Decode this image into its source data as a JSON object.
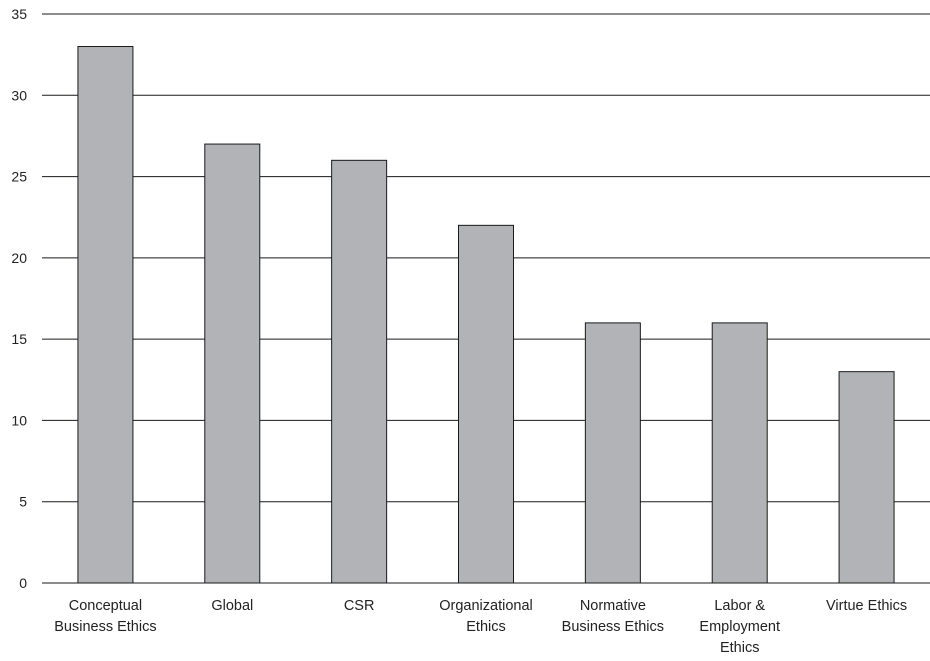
{
  "chart_data": {
    "type": "bar",
    "title": "",
    "xlabel": "",
    "ylabel": "",
    "categories": [
      "Conceptual Business Ethics",
      "Global",
      "CSR",
      "Organizational Ethics",
      "Normative Business Ethics",
      "Labor & Employment Ethics",
      "Virtue Ethics"
    ],
    "category_label_lines": [
      [
        "Conceptual",
        "Business Ethics"
      ],
      [
        "Global"
      ],
      [
        "CSR"
      ],
      [
        "Organizational",
        "Ethics"
      ],
      [
        "Normative",
        "Business Ethics"
      ],
      [
        "Labor &",
        "Employment",
        "Ethics"
      ],
      [
        "Virtue Ethics"
      ]
    ],
    "values": [
      33,
      27,
      26,
      22,
      16,
      16,
      13
    ],
    "ylim": [
      0,
      35
    ],
    "yticks": [
      0,
      5,
      10,
      15,
      20,
      25,
      30,
      35
    ],
    "ytick_labels": [
      "0",
      "5",
      "10",
      "15",
      "20",
      "25",
      "30",
      "35"
    ],
    "grid": true,
    "legend": "none",
    "colors": {
      "bar_fill": "#b1b3b6",
      "bar_stroke": "#1a1a1a",
      "grid": "#1a1a1a"
    }
  }
}
